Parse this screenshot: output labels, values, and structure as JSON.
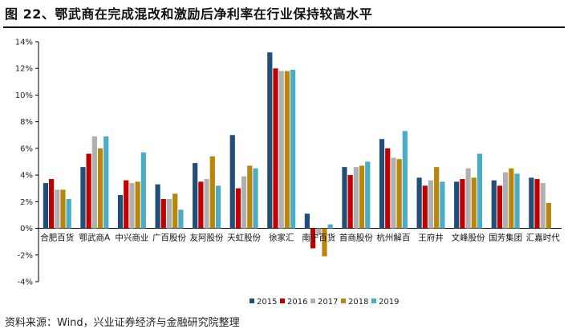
{
  "title": "图 22、鄂武商在完成混改和激励后净利率在行业保持较高水平",
  "source": "资料来源：Wind，兴业证券经济与金融研究院整理",
  "chart_data": {
    "type": "bar",
    "title": "图 22、鄂武商在完成混改和激励后净利率在行业保持较高水平",
    "xlabel": "",
    "ylabel": "",
    "ylim": [
      -4,
      14
    ],
    "yticks": [
      -4,
      -2,
      0,
      2,
      4,
      6,
      8,
      10,
      12,
      14
    ],
    "ytick_format": "percent",
    "grid": false,
    "legend_position": "bottom",
    "categories": [
      "合肥百货",
      "鄂武商A",
      "中兴商业",
      "广百股份",
      "友阿股份",
      "天虹股份",
      "徐家汇",
      "南宁百货",
      "首商股份",
      "杭州解百",
      "王府井",
      "文峰股份",
      "国芳集团",
      "汇嘉时代"
    ],
    "series": [
      {
        "name": "2015",
        "color": "#1f4e79",
        "values": [
          3.4,
          4.6,
          2.5,
          3.3,
          4.9,
          7.0,
          13.2,
          1.1,
          4.6,
          6.7,
          3.8,
          3.5,
          3.6,
          3.8
        ]
      },
      {
        "name": "2016",
        "color": "#c00000",
        "values": [
          3.7,
          5.6,
          3.6,
          2.2,
          3.5,
          3.0,
          12.0,
          -1.5,
          4.0,
          6.0,
          3.2,
          3.7,
          3.2,
          3.7
        ]
      },
      {
        "name": "2017",
        "color": "#b0b0b0",
        "values": [
          2.9,
          6.9,
          3.4,
          2.2,
          3.7,
          3.9,
          11.8,
          -0.5,
          4.6,
          5.3,
          3.6,
          4.5,
          4.2,
          3.4
        ]
      },
      {
        "name": "2018",
        "color": "#b8860b",
        "values": [
          2.9,
          6.0,
          3.5,
          2.6,
          5.4,
          4.7,
          11.8,
          -2.1,
          4.7,
          5.2,
          4.6,
          3.8,
          4.5,
          1.9
        ]
      },
      {
        "name": "2019",
        "color": "#4bacc6",
        "values": [
          2.2,
          6.9,
          5.7,
          1.4,
          3.2,
          4.5,
          11.9,
          0.3,
          5.0,
          7.3,
          3.5,
          5.6,
          4.1,
          null
        ]
      }
    ]
  }
}
